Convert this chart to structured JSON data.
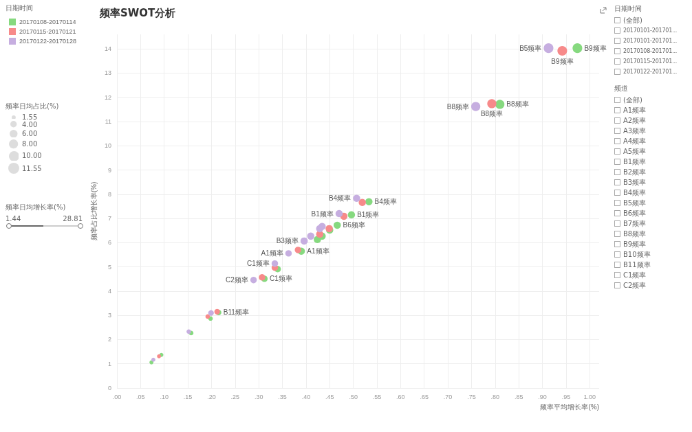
{
  "chart_data": [
    {
      "type": "bubble",
      "title": "频率SWOT分析",
      "xlabel": "频率平均增长率(%)",
      "ylabel": "频率占比增长率(%)",
      "legend_title": "日期时间",
      "legend": "left",
      "grid": true,
      "xlim": [
        0,
        1.02
      ],
      "xticks": [
        {
          "value": 0,
          "label": ".00"
        },
        {
          "value": 0.05,
          "label": ".05"
        },
        {
          "value": 0.1,
          "label": ".10"
        },
        {
          "value": 0.15,
          "label": ".15"
        },
        {
          "value": 0.2,
          "label": ".20"
        },
        {
          "value": 0.25,
          "label": ".25"
        },
        {
          "value": 0.3,
          "label": ".30"
        },
        {
          "value": 0.35,
          "label": ".35"
        },
        {
          "value": 0.4,
          "label": ".40"
        },
        {
          "value": 0.45,
          "label": ".45"
        },
        {
          "value": 0.5,
          "label": ".50"
        },
        {
          "value": 0.55,
          "label": ".55"
        },
        {
          "value": 0.6,
          "label": ".60"
        },
        {
          "value": 0.65,
          "label": ".65"
        },
        {
          "value": 0.7,
          "label": ".70"
        },
        {
          "value": 0.75,
          "label": ".75"
        },
        {
          "value": 0.8,
          "label": ".80"
        },
        {
          "value": 0.85,
          "label": ".85"
        },
        {
          "value": 0.9,
          "label": ".90"
        },
        {
          "value": 0.95,
          "label": ".95"
        },
        {
          "value": 1,
          "label": "1.00"
        }
      ],
      "ylim": [
        0,
        14.6
      ],
      "yticks": [
        0,
        1,
        2,
        3,
        4,
        5,
        6,
        7,
        8,
        9,
        10,
        11,
        12,
        13,
        14
      ],
      "size_legend": [
        1.55,
        {
          "value": 4,
          "label": "4.00"
        },
        {
          "value": 6,
          "label": "6.00"
        },
        {
          "value": 8,
          "label": "8.00"
        },
        {
          "value": 10,
          "label": "10.00"
        },
        11.55
      ],
      "series": [
        {
          "name": "20170108-20170114",
          "color": "#86d97f",
          "x": [
            0.974,
            0.81,
            0.496,
            0.533,
            0.466,
            0.45,
            0.424,
            0.434,
            0.39,
            0.34,
            0.312,
            0.215,
            0.198,
            0.157,
            0.094,
            0.073
          ],
          "values": [
            14.03,
            11.71,
            7.15,
            7.69,
            6.72,
            6.52,
            6.13,
            6.27,
            5.65,
            4.91,
            4.51,
            3.12,
            2.87,
            2.27,
            1.37,
            1.06
          ],
          "sizes": [
            9,
            8,
            5,
            5,
            5,
            5,
            5,
            5,
            5,
            4,
            4,
            3,
            2,
            2,
            1.55,
            1.55
          ]
        },
        {
          "name": "20170115-20170121",
          "color": "#f78a8a",
          "x": [
            0.942,
            0.793,
            0.48,
            0.519,
            0.449,
            0.429,
            0.383,
            0.334,
            0.307,
            0.212,
            0.192,
            0.089
          ],
          "values": [
            13.92,
            11.74,
            7.09,
            7.66,
            6.58,
            6.35,
            5.7,
            4.97,
            4.57,
            3.15,
            2.95,
            1.31
          ],
          "sizes": [
            9,
            8,
            5,
            5,
            5,
            5,
            4,
            4,
            4,
            3,
            2,
            1.55
          ]
        },
        {
          "name": "20170122-20170128",
          "color": "#c6aee0",
          "x": [
            0.913,
            0.759,
            0.47,
            0.507,
            0.429,
            0.434,
            0.41,
            0.396,
            0.363,
            0.334,
            0.289,
            0.199,
            0.152,
            0.077
          ],
          "values": [
            14.03,
            11.62,
            7.2,
            7.83,
            6.58,
            6.67,
            6.27,
            6.07,
            5.56,
            5.14,
            4.46,
            3.1,
            2.33,
            1.17
          ],
          "sizes": [
            9,
            8,
            5,
            5,
            5,
            5,
            5,
            5,
            4,
            4,
            4,
            3,
            2,
            1.55
          ]
        }
      ],
      "annotations": [
        "频率日均占比(%)",
        "频率日均增长率(%)",
        "1.44",
        "28.81",
        {
          "text": "B5频率",
          "x": 0.913,
          "y": 14.03
        },
        {
          "text": "B9频率",
          "x": 0.942,
          "y": 13.92
        },
        {
          "text": "B9频率",
          "x": 0.974,
          "y": 14.03
        },
        {
          "text": "B8频率",
          "x": 0.793,
          "y": 11.74
        },
        {
          "text": "B8频率",
          "x": 0.759,
          "y": 11.62
        },
        {
          "text": "B8频率",
          "x": 0.81,
          "y": 11.71
        },
        {
          "text": "B4频率",
          "x": 0.507,
          "y": 7.83
        },
        {
          "text": "B4频率",
          "x": 0.533,
          "y": 7.69
        },
        {
          "text": "B1频率",
          "x": 0.47,
          "y": 7.2
        },
        {
          "text": "B1频率",
          "x": 0.496,
          "y": 7.15
        },
        {
          "text": "B6频率",
          "x": 0.466,
          "y": 6.72
        },
        {
          "text": "B3频率",
          "x": 0.396,
          "y": 6.07
        },
        {
          "text": "A1频率",
          "x": 0.363,
          "y": 5.56
        },
        {
          "text": "A1频率",
          "x": 0.39,
          "y": 5.65
        },
        {
          "text": "C1频率",
          "x": 0.334,
          "y": 5.14
        },
        {
          "text": "C1频率",
          "x": 0.312,
          "y": 4.51
        },
        {
          "text": "C2频率",
          "x": 0.289,
          "y": 4.46
        },
        {
          "text": "B11频率",
          "x": 0.215,
          "y": 3.12
        }
      ]
    },
    {
      "type": "other",
      "title": "日期时间",
      "annotations": [
        "(全部)",
        "20170101-201701...",
        "20170101-201701...",
        "20170108-201701...",
        "20170115-201701...",
        "20170122-201701..."
      ]
    },
    {
      "type": "other",
      "title": "频道",
      "annotations": [
        "(全部)",
        "A1频率",
        "A2频率",
        "A3频率",
        "A4频率",
        "A5频率",
        "B1频率",
        "B2频率",
        "B3频率",
        "B4频率",
        "B5频率",
        "B6频率",
        "B7频率",
        "B8频率",
        "B9频率",
        "B10频率",
        "B11频率",
        "C1频率",
        "C2频率"
      ]
    }
  ]
}
